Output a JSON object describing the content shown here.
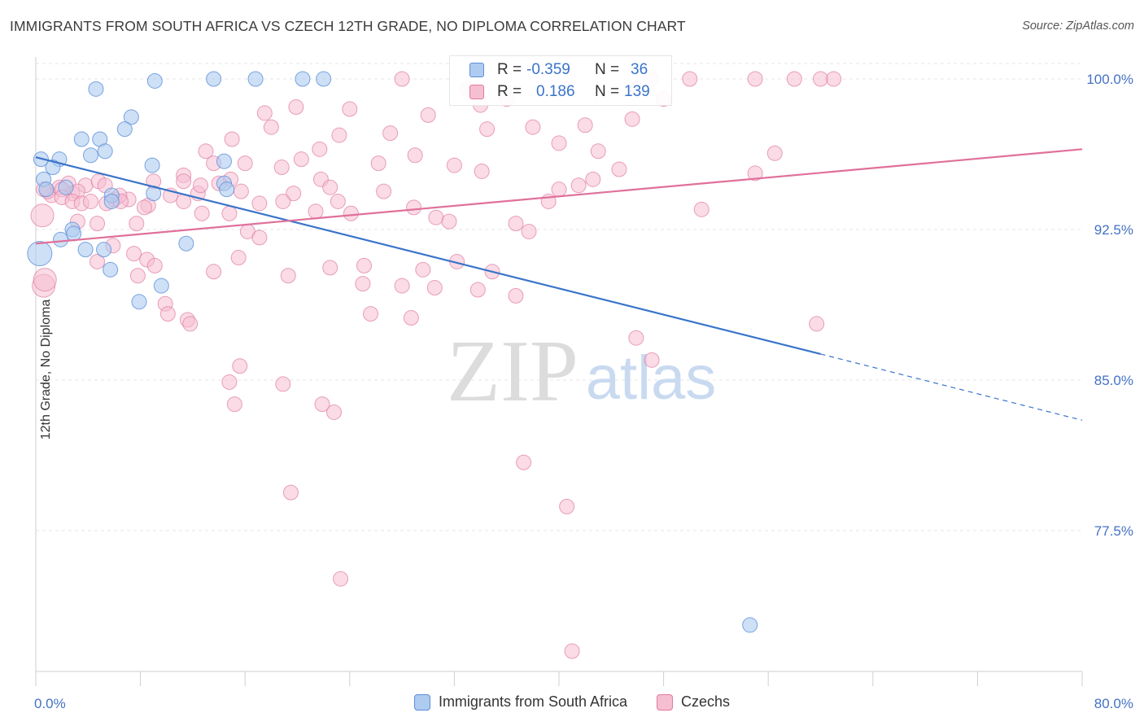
{
  "title": "IMMIGRANTS FROM SOUTH AFRICA VS CZECH 12TH GRADE, NO DIPLOMA CORRELATION CHART",
  "source": "Source: ZipAtlas.com",
  "watermark": {
    "zip": "ZIP",
    "atlas": "atlas"
  },
  "colors": {
    "blue": "#5b8fd9",
    "blue_fill": "#aecbf0",
    "blue_line": "#3a74c9",
    "pink": "#e07aa0",
    "pink_fill": "#f6bed1",
    "pink_line": "#e0709a",
    "tick_label": "#4472c4",
    "grid": "#e4e4e4"
  },
  "stats": {
    "blue": {
      "r_label": "R =",
      "r": "-0.359",
      "n_label": "N =",
      "n": "36"
    },
    "pink": {
      "r_label": "R =",
      "r": "0.186",
      "n_label": "N =",
      "n": "139"
    }
  },
  "legend": {
    "blue": "Immigrants from South Africa",
    "pink": "Czechs"
  },
  "chart_data": {
    "type": "scatter",
    "title": "IMMIGRANTS FROM SOUTH AFRICA VS CZECH 12TH GRADE, NO DIPLOMA CORRELATION CHART",
    "xlabel": "",
    "ylabel": "12th Grade, No Diploma",
    "xlim": [
      0,
      80
    ],
    "ylim": [
      70.5,
      100.5
    ],
    "x_tick_labels": [
      "0.0%",
      "80.0%"
    ],
    "y_ticks": [
      100.0,
      92.5,
      85.0,
      77.5
    ],
    "y_tick_labels": [
      "100.0%",
      "92.5%",
      "85.0%",
      "77.5%"
    ],
    "grid": true,
    "legend_position": "bottom",
    "series": [
      {
        "name": "Immigrants from South Africa",
        "color": "#5b8fd9",
        "trend": {
          "x0": 0,
          "y0": 96.1,
          "x1": 60,
          "y1": 86.3,
          "dash_to_x": 80,
          "dash_to_y": 83.0
        },
        "points": [
          [
            4.6,
            99.5
          ],
          [
            9.1,
            99.9
          ],
          [
            13.6,
            100.0
          ],
          [
            16.8,
            100.0
          ],
          [
            20.4,
            100.0
          ],
          [
            22.0,
            100.0
          ],
          [
            7.3,
            98.1
          ],
          [
            6.8,
            97.5
          ],
          [
            3.5,
            97.0
          ],
          [
            4.9,
            97.0
          ],
          [
            5.3,
            96.4
          ],
          [
            1.8,
            96.0
          ],
          [
            1.3,
            95.6
          ],
          [
            8.9,
            95.7
          ],
          [
            14.4,
            95.9
          ],
          [
            4.2,
            96.2
          ],
          [
            0.6,
            95.0
          ],
          [
            0.8,
            94.5
          ],
          [
            2.3,
            94.6
          ],
          [
            9.0,
            94.3
          ],
          [
            14.4,
            94.8
          ],
          [
            14.6,
            94.5
          ],
          [
            5.8,
            94.2
          ],
          [
            5.8,
            93.9
          ],
          [
            2.8,
            92.5
          ],
          [
            1.9,
            92.0
          ],
          [
            2.9,
            92.3
          ],
          [
            0.3,
            91.3
          ],
          [
            3.8,
            91.5
          ],
          [
            5.2,
            91.5
          ],
          [
            11.5,
            91.8
          ],
          [
            5.7,
            90.5
          ],
          [
            9.6,
            89.7
          ],
          [
            7.9,
            88.9
          ],
          [
            54.6,
            72.8
          ],
          [
            0.4,
            96.0
          ]
        ]
      },
      {
        "name": "Czechs",
        "color": "#e07aa0",
        "trend": {
          "x0": 0,
          "y0": 91.8,
          "x1": 80,
          "y1": 96.5
        },
        "points": [
          [
            28.0,
            100.0
          ],
          [
            47.0,
            100.0
          ],
          [
            50.0,
            100.0
          ],
          [
            55.0,
            100.0
          ],
          [
            58.0,
            100.0
          ],
          [
            60.0,
            100.0
          ],
          [
            61.0,
            100.0
          ],
          [
            46.0,
            99.5
          ],
          [
            48.0,
            99.0
          ],
          [
            33.0,
            99.5
          ],
          [
            34.0,
            98.7
          ],
          [
            36.0,
            99.0
          ],
          [
            24.0,
            98.5
          ],
          [
            30.0,
            98.2
          ],
          [
            17.5,
            98.3
          ],
          [
            19.9,
            98.6
          ],
          [
            18.0,
            97.6
          ],
          [
            23.2,
            97.2
          ],
          [
            27.1,
            97.3
          ],
          [
            34.5,
            97.5
          ],
          [
            38.0,
            97.6
          ],
          [
            42.0,
            97.7
          ],
          [
            45.6,
            98.0
          ],
          [
            15.0,
            97.0
          ],
          [
            13.0,
            96.4
          ],
          [
            21.7,
            96.5
          ],
          [
            29.0,
            96.2
          ],
          [
            40.0,
            96.8
          ],
          [
            43.0,
            96.4
          ],
          [
            56.5,
            96.3
          ],
          [
            20.3,
            96.0
          ],
          [
            13.6,
            95.8
          ],
          [
            16.0,
            95.8
          ],
          [
            26.2,
            95.8
          ],
          [
            32.0,
            95.7
          ],
          [
            34.1,
            95.4
          ],
          [
            44.6,
            95.5
          ],
          [
            55.0,
            95.3
          ],
          [
            11.3,
            95.2
          ],
          [
            14.9,
            95.0
          ],
          [
            21.8,
            95.0
          ],
          [
            42.6,
            95.0
          ],
          [
            41.5,
            94.7
          ],
          [
            22.5,
            94.6
          ],
          [
            2.5,
            94.8
          ],
          [
            3.8,
            94.7
          ],
          [
            4.8,
            94.9
          ],
          [
            5.3,
            94.7
          ],
          [
            10.3,
            94.2
          ],
          [
            12.4,
            94.3
          ],
          [
            19.7,
            94.3
          ],
          [
            40.0,
            94.5
          ],
          [
            2.8,
            94.3
          ],
          [
            3.2,
            94.4
          ],
          [
            1.2,
            94.2
          ],
          [
            0.9,
            94.4
          ],
          [
            0.6,
            94.5
          ],
          [
            1.8,
            94.6
          ],
          [
            2.0,
            94.5
          ],
          [
            6.0,
            94.0
          ],
          [
            7.1,
            94.0
          ],
          [
            8.6,
            93.7
          ],
          [
            11.3,
            93.9
          ],
          [
            17.1,
            93.8
          ],
          [
            18.9,
            93.9
          ],
          [
            23.1,
            93.9
          ],
          [
            28.9,
            93.6
          ],
          [
            39.2,
            93.9
          ],
          [
            50.9,
            93.5
          ],
          [
            2.0,
            94.1
          ],
          [
            2.8,
            93.9
          ],
          [
            3.5,
            93.8
          ],
          [
            4.2,
            93.9
          ],
          [
            5.4,
            93.8
          ],
          [
            6.4,
            94.2
          ],
          [
            8.3,
            93.6
          ],
          [
            12.7,
            93.3
          ],
          [
            14.8,
            93.3
          ],
          [
            21.4,
            93.4
          ],
          [
            24.1,
            93.3
          ],
          [
            30.6,
            93.1
          ],
          [
            31.6,
            92.9
          ],
          [
            36.7,
            92.8
          ],
          [
            0.5,
            93.2
          ],
          [
            3.2,
            92.9
          ],
          [
            4.7,
            92.8
          ],
          [
            7.7,
            92.8
          ],
          [
            16.2,
            92.4
          ],
          [
            17.1,
            92.1
          ],
          [
            37.7,
            92.4
          ],
          [
            5.9,
            91.7
          ],
          [
            7.5,
            91.3
          ],
          [
            8.5,
            91.0
          ],
          [
            9.1,
            90.7
          ],
          [
            15.5,
            91.1
          ],
          [
            22.5,
            90.6
          ],
          [
            25.1,
            90.7
          ],
          [
            29.6,
            90.5
          ],
          [
            32.2,
            90.9
          ],
          [
            34.9,
            90.4
          ],
          [
            0.6,
            89.7
          ],
          [
            4.7,
            90.9
          ],
          [
            13.6,
            90.4
          ],
          [
            19.3,
            90.2
          ],
          [
            25.0,
            89.8
          ],
          [
            28.0,
            89.7
          ],
          [
            30.5,
            89.6
          ],
          [
            33.8,
            89.5
          ],
          [
            36.7,
            89.2
          ],
          [
            7.8,
            90.2
          ],
          [
            9.9,
            88.8
          ],
          [
            10.1,
            88.3
          ],
          [
            11.6,
            88.0
          ],
          [
            11.8,
            87.8
          ],
          [
            25.6,
            88.3
          ],
          [
            28.7,
            88.1
          ],
          [
            59.7,
            87.8
          ],
          [
            45.9,
            87.1
          ],
          [
            47.1,
            86.0
          ],
          [
            15.6,
            85.7
          ],
          [
            14.8,
            84.9
          ],
          [
            18.9,
            84.8
          ],
          [
            15.2,
            83.8
          ],
          [
            21.9,
            83.8
          ],
          [
            22.8,
            83.4
          ],
          [
            37.3,
            80.9
          ],
          [
            40.6,
            78.7
          ],
          [
            19.5,
            79.4
          ],
          [
            23.3,
            75.1
          ],
          [
            41.0,
            71.5
          ],
          [
            11.3,
            94.9
          ],
          [
            26.6,
            94.4
          ],
          [
            14.0,
            94.8
          ],
          [
            15.7,
            94.4
          ],
          [
            18.8,
            95.6
          ],
          [
            12.6,
            94.7
          ],
          [
            6.5,
            93.9
          ],
          [
            9.0,
            94.9
          ],
          [
            0.7,
            90.0
          ]
        ]
      }
    ]
  }
}
